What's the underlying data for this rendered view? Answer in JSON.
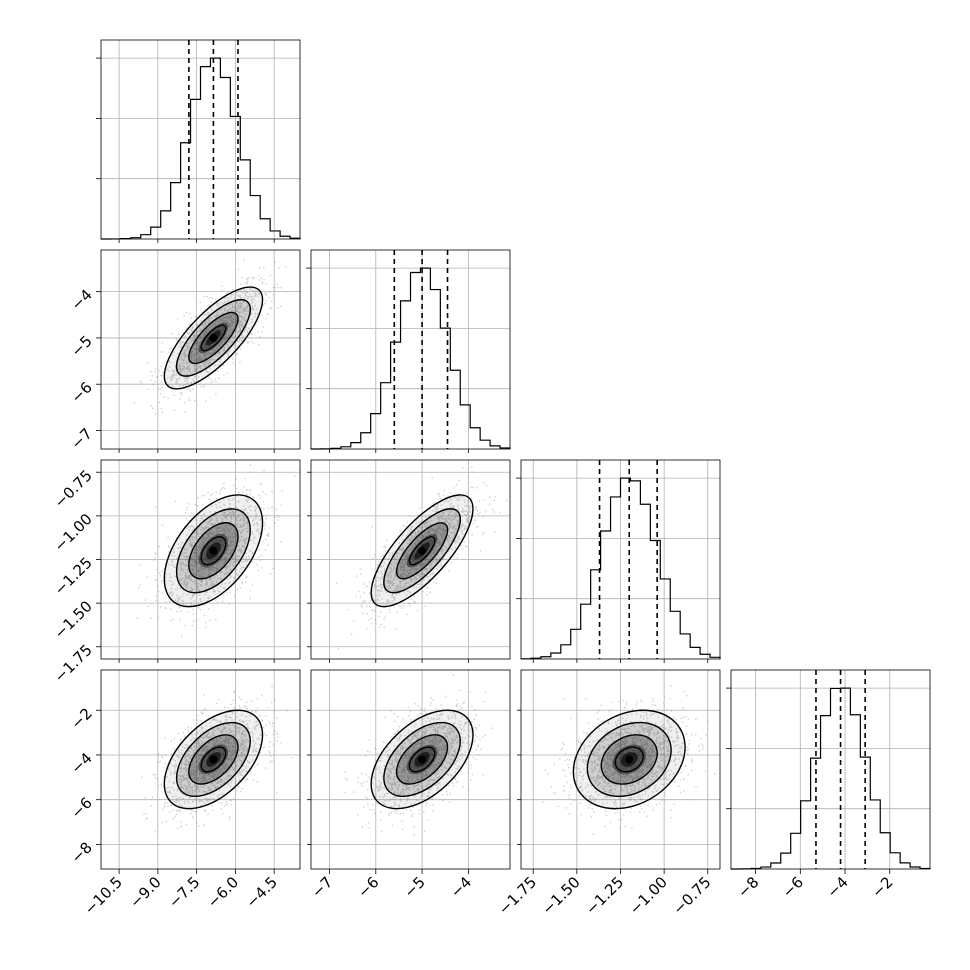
{
  "chart_data": {
    "type": "corner",
    "grid": true,
    "parameters": [
      {
        "index": 0,
        "range": [
          -11.2,
          -3.5
        ],
        "ticks": [
          -10.5,
          -9.0,
          -7.5,
          -6.0,
          -4.5
        ],
        "tick_labels": [
          "−10.5",
          "−9.0",
          "−7.5",
          "−6.0",
          "−4.5"
        ],
        "mean": -6.85,
        "sd": 0.95,
        "quantiles": [
          -7.8,
          -6.85,
          -5.9
        ]
      },
      {
        "index": 1,
        "range": [
          -7.4,
          -3.1
        ],
        "ticks": [
          -7,
          -6,
          -5,
          -4
        ],
        "tick_labels": [
          "−7",
          "−6",
          "−5",
          "−4"
        ],
        "mean": -5.0,
        "sd": 0.55,
        "quantiles": [
          -5.6,
          -5.0,
          -4.45
        ]
      },
      {
        "index": 2,
        "range": [
          -1.82,
          -0.68
        ],
        "ticks": [
          -1.75,
          -1.5,
          -1.25,
          -1.0,
          -0.75
        ],
        "tick_labels": [
          "−1.75",
          "−1.50",
          "−1.25",
          "−1.00",
          "−0.75"
        ],
        "mean": -1.2,
        "sd": 0.16,
        "quantiles": [
          -1.37,
          -1.2,
          -1.04
        ]
      },
      {
        "index": 3,
        "range": [
          -9.1,
          -0.2
        ],
        "ticks": [
          -8,
          -6,
          -4,
          -2
        ],
        "tick_labels": [
          "−8",
          "−6",
          "−4",
          "−2"
        ],
        "mean": -4.2,
        "sd": 1.1,
        "quantiles": [
          -5.3,
          -4.2,
          -3.1
        ]
      }
    ],
    "correlations": {
      "1-0": 0.75,
      "2-0": 0.5,
      "2-1": 0.75,
      "3-0": 0.5,
      "3-1": 0.5,
      "3-2": 0.25
    },
    "histogram_bins": 20,
    "contour_levels_sigma": [
      0.5,
      1.0,
      1.5,
      2.0
    ],
    "colors": {
      "ink": "#000000",
      "grid": "#b0b0b0",
      "scatter": "#999999",
      "density": "#000000"
    }
  }
}
